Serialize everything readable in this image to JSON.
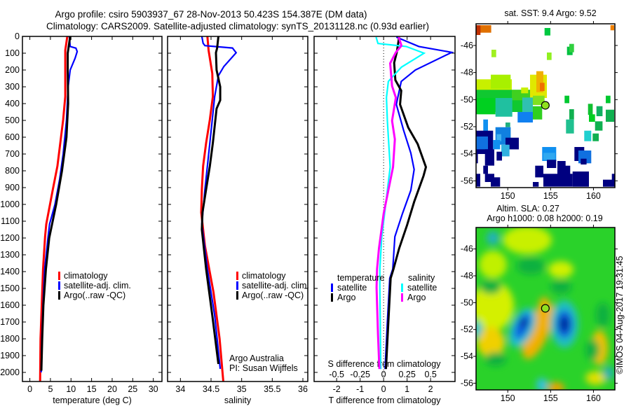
{
  "header": {
    "title_line1": "Argo profile: csiro 5903937_67 28-Nov-2013 50.423S 154.387E (DM data)",
    "title_line2": "Climatology: CARS2009. Satellite-adjusted climatology: synTS_20131128.nc (0.93d earlier)"
  },
  "colors": {
    "climatology": "#ff0000",
    "satellite": "#0000ff",
    "argo": "#000000",
    "sal_satellite": "#00ffff",
    "sal_argo": "#ff00ff"
  },
  "chart_data": [
    {
      "type": "line",
      "id": "temperature",
      "xlabel": "temperature (deg C)",
      "ylabel": "",
      "xlim": [
        -1.8,
        32.1
      ],
      "ylim": [
        2054,
        0
      ],
      "xticks": [
        0,
        5,
        10,
        15,
        20,
        25,
        30
      ],
      "yticks": [
        0,
        100,
        200,
        300,
        400,
        500,
        600,
        700,
        800,
        900,
        1000,
        1100,
        1200,
        1300,
        1400,
        1500,
        1600,
        1700,
        1800,
        1900,
        2000
      ],
      "legend": [
        "climatology",
        "satellite-adj. clim.",
        "Argo(..raw -QC)"
      ],
      "series": [
        {
          "name": "climatology",
          "color": "#ff0000",
          "points": [
            [
              0,
              9.1
            ],
            [
              83,
              8.6
            ],
            [
              358,
              8.6
            ],
            [
              496,
              8.1
            ],
            [
              772,
              6.7
            ],
            [
              910,
              5.6
            ],
            [
              1117,
              4.0
            ],
            [
              1192,
              3.7
            ],
            [
              1385,
              3.2
            ],
            [
              1592,
              2.9
            ],
            [
              1800,
              2.6
            ],
            [
              2054,
              2.5
            ]
          ]
        },
        {
          "name": "satellite-adj. clim.",
          "color": "#0000ff",
          "points": [
            [
              0,
              9.6
            ],
            [
              60,
              9.8
            ],
            [
              70,
              11.2
            ],
            [
              90,
              11.5
            ],
            [
              130,
              11.0
            ],
            [
              200,
              9.8
            ],
            [
              300,
              9.3
            ],
            [
              500,
              8.9
            ],
            [
              700,
              8.1
            ],
            [
              850,
              7.25
            ],
            [
              1000,
              6.1
            ],
            [
              1117,
              4.8
            ],
            [
              1200,
              4.4
            ],
            [
              1385,
              3.6
            ],
            [
              1592,
              3.2
            ],
            [
              1800,
              2.9
            ],
            [
              2000,
              2.75
            ]
          ]
        },
        {
          "name": "Argo(..raw -QC)",
          "color": "#000000",
          "points": [
            [
              0,
              9.8
            ],
            [
              100,
              9.2
            ],
            [
              200,
              9.2
            ],
            [
              400,
              9.3
            ],
            [
              600,
              8.9
            ],
            [
              800,
              7.8
            ],
            [
              1000,
              6.4
            ],
            [
              1200,
              4.7
            ],
            [
              1385,
              3.9
            ],
            [
              1600,
              3.3
            ],
            [
              1800,
              3.0
            ],
            [
              1990,
              2.8
            ]
          ]
        }
      ]
    },
    {
      "type": "line",
      "id": "salinity",
      "xlabel": "salinity",
      "xlim": [
        33.79,
        36.08
      ],
      "ylim": [
        2054,
        0
      ],
      "xticks": [
        34,
        34.5,
        35,
        35.5,
        36
      ],
      "xtick_labels": [
        "34",
        "34.5",
        "35",
        "35.5",
        "36"
      ],
      "legend": [
        "climatology",
        "satellite-adj. clim.",
        "Argo(..raw -QC)"
      ],
      "annotation": [
        "Argo Australia",
        "PI: Susan Wijffels"
      ],
      "series": [
        {
          "name": "climatology",
          "color": "#ff0000",
          "points": [
            [
              0,
              34.44
            ],
            [
              83,
              34.46
            ],
            [
              221,
              34.52
            ],
            [
              358,
              34.53
            ],
            [
              496,
              34.48
            ],
            [
              634,
              34.42
            ],
            [
              772,
              34.37
            ],
            [
              910,
              34.35
            ],
            [
              1048,
              34.34
            ],
            [
              1247,
              34.4
            ],
            [
              1523,
              34.54
            ],
            [
              1799,
              34.64
            ],
            [
              2054,
              34.7
            ]
          ]
        },
        {
          "name": "satellite-adj. clim.",
          "color": "#0000ff",
          "points": [
            [
              0,
              34.35
            ],
            [
              41,
              34.37
            ],
            [
              55,
              34.4
            ],
            [
              69,
              34.85
            ],
            [
              97,
              34.91
            ],
            [
              179,
              34.71
            ],
            [
              234,
              34.62
            ],
            [
              358,
              34.56
            ],
            [
              634,
              34.48
            ],
            [
              910,
              34.4
            ],
            [
              1117,
              34.35
            ],
            [
              1385,
              34.44
            ],
            [
              1661,
              34.56
            ],
            [
              1979,
              34.65
            ]
          ]
        },
        {
          "name": "Argo(..raw -QC)",
          "color": "#000000",
          "points": [
            [
              0,
              34.62
            ],
            [
              69,
              34.6
            ],
            [
              97,
              34.58
            ],
            [
              200,
              34.59
            ],
            [
              300,
              34.65
            ],
            [
              380,
              34.65
            ],
            [
              430,
              34.59
            ],
            [
              500,
              34.57
            ],
            [
              634,
              34.53
            ],
            [
              772,
              34.48
            ],
            [
              910,
              34.42
            ],
            [
              1048,
              34.36
            ],
            [
              1150,
              34.35
            ],
            [
              1385,
              34.42
            ],
            [
              1661,
              34.52
            ],
            [
              1950,
              34.62
            ]
          ]
        }
      ]
    },
    {
      "type": "line",
      "id": "differences",
      "xlabel": "T difference from climatology",
      "xlabel_top": "S difference from climatology",
      "xlim": [
        -2.96,
        3.04
      ],
      "xlim_s": [
        -0.74,
        0.76
      ],
      "xticks": [
        -2,
        -1,
        0,
        1,
        2
      ],
      "xtick_labels": [
        "-2",
        "-1",
        "0",
        "1",
        "2"
      ],
      "sticks": [
        -0.5,
        -0.25,
        0,
        0.25,
        0.5
      ],
      "stick_labels": [
        "-0.5",
        "-0.25",
        "0",
        "0.25",
        "0.5"
      ],
      "ylim": [
        2054,
        0
      ],
      "legend": {
        "temperature_heading": "temperature",
        "salinity_heading": "salinity",
        "temperature": [
          "satellite",
          "Argo"
        ],
        "salinity": [
          "satellite",
          "Argo"
        ]
      },
      "series": [
        {
          "name": "T satellite",
          "axis": "T",
          "color": "#0000ff",
          "points": [
            [
              4,
              0.54
            ],
            [
              60,
              1.5
            ],
            [
              95,
              2.9
            ],
            [
              200,
              1.35
            ],
            [
              268,
              0.75
            ],
            [
              405,
              0.54
            ],
            [
              558,
              0.85
            ],
            [
              695,
              1.16
            ],
            [
              792,
              1.3
            ],
            [
              916,
              1.16
            ],
            [
              1055,
              0.8
            ],
            [
              1192,
              0.48
            ],
            [
              1385,
              0.39
            ],
            [
              1440,
              0.26
            ],
            [
              1700,
              0.16
            ],
            [
              1980,
              0.06
            ]
          ]
        },
        {
          "name": "T Argo",
          "axis": "T",
          "color": "#000000",
          "points": [
            [
              4,
              0.66
            ],
            [
              95,
              0.56
            ],
            [
              157,
              0.45
            ],
            [
              260,
              0.5
            ],
            [
              323,
              0.75
            ],
            [
              405,
              0.7
            ],
            [
              543,
              1.05
            ],
            [
              640,
              1.45
            ],
            [
              778,
              1.8
            ],
            [
              830,
              1.7
            ],
            [
              985,
              1.3
            ],
            [
              1122,
              1.0
            ],
            [
              1262,
              0.66
            ],
            [
              1385,
              0.42
            ],
            [
              1440,
              0.3
            ],
            [
              1700,
              0.2
            ],
            [
              1980,
              0.1
            ]
          ]
        },
        {
          "name": "S satellite",
          "axis": "S",
          "color": "#00ffff",
          "points": [
            [
              4,
              -0.08
            ],
            [
              42,
              -0.06
            ],
            [
              60,
              0.24
            ],
            [
              100,
              0.43
            ],
            [
              183,
              0.19
            ],
            [
              268,
              0.05
            ],
            [
              364,
              0.03
            ],
            [
              502,
              0.04
            ],
            [
              778,
              0.07
            ],
            [
              1055,
              0.01
            ],
            [
              1192,
              -0.02
            ],
            [
              1385,
              -0.04
            ],
            [
              1495,
              -0.04
            ],
            [
              1980,
              -0.03
            ]
          ]
        },
        {
          "name": "S Argo",
          "axis": "S",
          "color": "#ff00ff",
          "points": [
            [
              4,
              0.16
            ],
            [
              55,
              0.19
            ],
            [
              95,
              0.13
            ],
            [
              160,
              0.07
            ],
            [
              295,
              0.09
            ],
            [
              364,
              0.13
            ],
            [
              502,
              0.09
            ],
            [
              612,
              0.12
            ],
            [
              778,
              0.1
            ],
            [
              916,
              0.05
            ],
            [
              1055,
              0.0
            ],
            [
              1262,
              -0.05
            ],
            [
              1385,
              -0.07
            ],
            [
              1495,
              -0.075
            ],
            [
              1770,
              -0.06
            ],
            [
              1980,
              -0.045
            ]
          ]
        }
      ]
    },
    {
      "type": "heatmap",
      "id": "sst-map",
      "title": "sat. SST: 9.4 Argo: 9.52",
      "xlim": [
        146.3,
        162.5
      ],
      "ylim": [
        -56.5,
        -44.4
      ],
      "xticks": [
        150,
        155,
        160
      ],
      "yticks": [
        -46,
        -48,
        -50,
        -52,
        -54,
        -56
      ],
      "profile_location": [
        154.387,
        -50.423
      ]
    },
    {
      "type": "heatmap",
      "id": "sla-map",
      "title_line1": "Altim. SLA: 0.27",
      "title_line2": "Argo h1000: 0.08 h2000: 0.19",
      "xlim": [
        146.3,
        162.5
      ],
      "ylim": [
        -56.5,
        -44.4
      ],
      "xticks": [
        150,
        155,
        160
      ],
      "yticks": [
        -46,
        -48,
        -50,
        -52,
        -54,
        -56
      ],
      "profile_location": [
        154.387,
        -50.423
      ]
    }
  ],
  "footer": {
    "watermark": "©IMOS 04-Aug-2017 19:31:45"
  }
}
